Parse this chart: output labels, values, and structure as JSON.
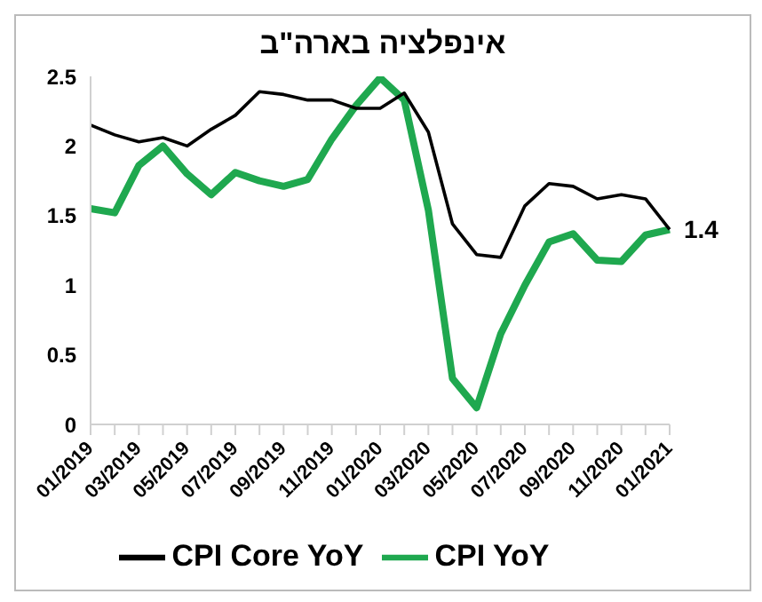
{
  "chart_data": {
    "type": "line",
    "title": "אינפלציה בארה\"ב",
    "categories": [
      "01/2019",
      null,
      "03/2019",
      null,
      "05/2019",
      null,
      "07/2019",
      null,
      "09/2019",
      null,
      "11/2019",
      null,
      "01/2020",
      null,
      "03/2020",
      null,
      "05/2020",
      null,
      "07/2020",
      null,
      "09/2020",
      null,
      "11/2020",
      null,
      "01/2021"
    ],
    "series": [
      {
        "name": "CPI YoY",
        "color": "#1fa84f",
        "values": [
          1.55,
          1.52,
          1.86,
          2.0,
          1.8,
          1.65,
          1.81,
          1.75,
          1.71,
          1.76,
          2.05,
          2.29,
          2.49,
          2.33,
          1.54,
          0.33,
          0.12,
          0.65,
          1.0,
          1.31,
          1.37,
          1.18,
          1.17,
          1.36,
          1.4
        ]
      },
      {
        "name": "CPI Core YoY",
        "color": "#000000",
        "values": [
          2.15,
          2.08,
          2.03,
          2.06,
          2.0,
          2.12,
          2.22,
          2.39,
          2.37,
          2.33,
          2.33,
          2.27,
          2.27,
          2.38,
          2.1,
          1.44,
          1.22,
          1.2,
          1.57,
          1.73,
          1.71,
          1.62,
          1.65,
          1.62,
          1.4
        ]
      }
    ],
    "ylim": [
      0,
      2.5
    ],
    "yticks": [
      0,
      0.5,
      1,
      1.5,
      2,
      2.5
    ],
    "grid": false,
    "legend": "bottom",
    "marker": "none",
    "line_style": "solid",
    "annotations": [
      {
        "text": "1.4",
        "x": "01/2021",
        "y": 1.4
      }
    ]
  }
}
